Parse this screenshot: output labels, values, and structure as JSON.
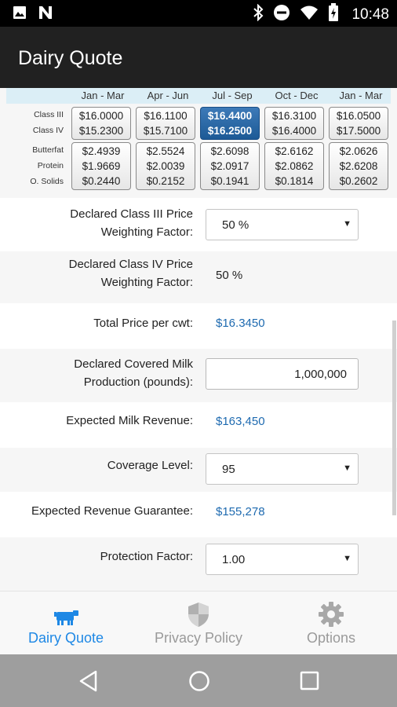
{
  "status_bar": {
    "time": "10:48",
    "left_icons": [
      "image-icon",
      "n-app-icon"
    ],
    "right_icons": [
      "bluetooth-icon",
      "do-not-disturb-icon",
      "wifi-icon",
      "battery-charging-icon"
    ]
  },
  "app_bar": {
    "title": "Dairy Quote"
  },
  "quotes": {
    "quarters": [
      "Jan - Mar",
      "Apr - Jun",
      "Jul - Sep",
      "Oct - Dec",
      "Jan - Mar"
    ],
    "class_labels": [
      "Class III",
      "Class IV"
    ],
    "component_labels": [
      "Butterfat",
      "Protein",
      "O. Solids"
    ],
    "class_prices": [
      {
        "class3": "$16.0000",
        "class4": "$15.2300"
      },
      {
        "class3": "$16.1100",
        "class4": "$15.7100"
      },
      {
        "class3": "$16.4400",
        "class4": "$16.2500"
      },
      {
        "class3": "$16.3100",
        "class4": "$16.4000"
      },
      {
        "class3": "$16.0500",
        "class4": "$17.5000"
      }
    ],
    "component_prices": [
      {
        "butterfat": "$2.4939",
        "protein": "$1.9669",
        "other_solids": "$0.2440"
      },
      {
        "butterfat": "$2.5524",
        "protein": "$2.0039",
        "other_solids": "$0.2152"
      },
      {
        "butterfat": "$2.6098",
        "protein": "$2.0917",
        "other_solids": "$0.1941"
      },
      {
        "butterfat": "$2.6162",
        "protein": "$2.0862",
        "other_solids": "$0.1814"
      },
      {
        "butterfat": "$2.0626",
        "protein": "$2.6208",
        "other_solids": "$0.2602"
      }
    ],
    "selected_quarter_index": 2
  },
  "form": {
    "class3_weight_label_line1": "Declared Class III Price",
    "class3_weight_label_line2": "Weighting Factor:",
    "class3_weight_value": "50 %",
    "class4_weight_label_line1": "Declared Class IV Price",
    "class4_weight_label_line2": "Weighting Factor:",
    "class4_weight_value": "50 %",
    "total_price_label": "Total Price per cwt:",
    "total_price_value": "$16.3450",
    "covered_production_label_line1": "Declared Covered Milk",
    "covered_production_label_line2": "Production (pounds):",
    "covered_production_value": "1,000,000",
    "expected_revenue_label": "Expected Milk Revenue:",
    "expected_revenue_value": "$163,450",
    "coverage_level_label": "Coverage Level:",
    "coverage_level_value": "95",
    "revenue_guarantee_label": "Expected Revenue Guarantee:",
    "revenue_guarantee_value": "$155,278",
    "protection_factor_label": "Protection Factor:",
    "protection_factor_value": "1.00"
  },
  "bottom_nav": {
    "items": [
      {
        "label": "Dairy Quote",
        "icon": "cow-icon",
        "active": true
      },
      {
        "label": "Privacy Policy",
        "icon": "shield-icon",
        "active": false
      },
      {
        "label": "Options",
        "icon": "gear-icon",
        "active": false
      }
    ]
  },
  "colors": {
    "accent": "#1e88e5",
    "value_blue": "#1e6ab0",
    "app_bar": "#212121",
    "selected_button": "#1d5a96",
    "quarter_header": "#dbeef6"
  }
}
